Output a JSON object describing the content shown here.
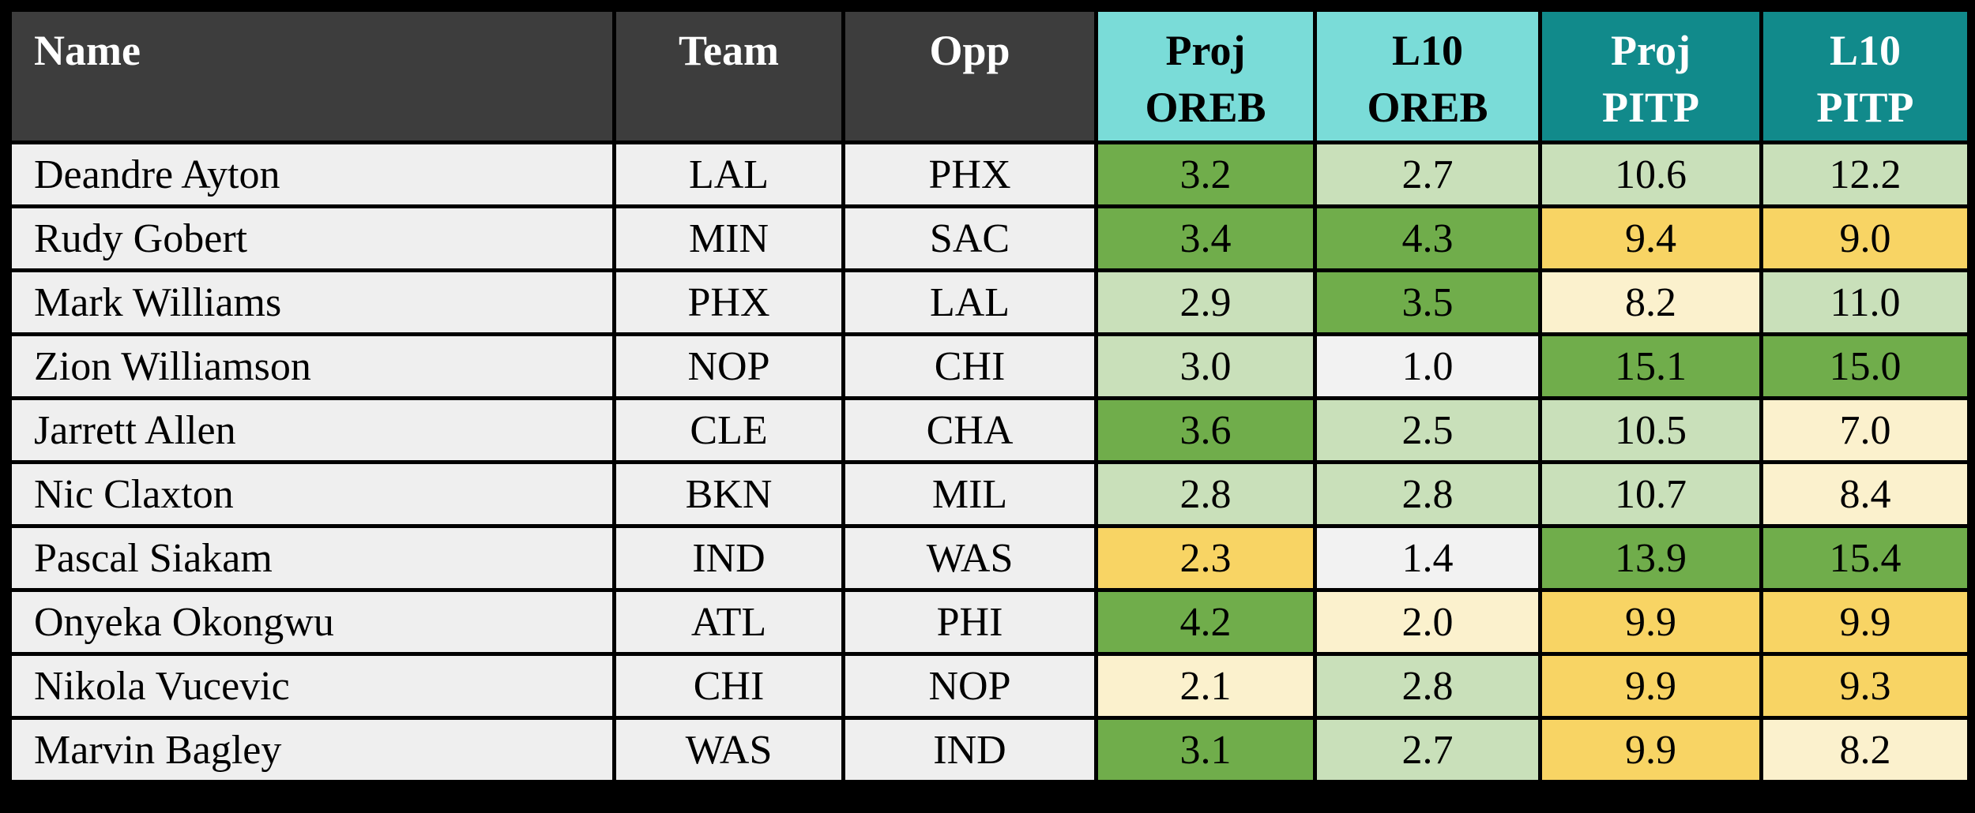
{
  "colors": {
    "page_bg": "#000000",
    "grid": "#000000",
    "header_dark": "#3d3d3d",
    "header_cyan": "#7adcd8",
    "header_teal": "#118a8b",
    "row_bg": "#efefef",
    "tiers": {
      "green": "#70ad4b",
      "light_green": "#c9e0ba",
      "cream": "#fbf1cd",
      "yellow": "#f8d464",
      "white": "#f2f2f2"
    }
  },
  "table": {
    "columns": [
      {
        "label": "Name",
        "label2": "",
        "header_bg": "#3d3d3d",
        "header_text": "#ffffff"
      },
      {
        "label": "Team",
        "label2": "",
        "header_bg": "#3d3d3d",
        "header_text": "#ffffff"
      },
      {
        "label": "Opp",
        "label2": "",
        "header_bg": "#3d3d3d",
        "header_text": "#ffffff"
      },
      {
        "label": "Proj",
        "label2": "OREB",
        "header_bg": "#7adcd8",
        "header_text": "#000000"
      },
      {
        "label": "L10",
        "label2": "OREB",
        "header_bg": "#7adcd8",
        "header_text": "#000000"
      },
      {
        "label": "Proj",
        "label2": "PITP",
        "header_bg": "#118a8b",
        "header_text": "#ffffff"
      },
      {
        "label": "L10",
        "label2": "PITP",
        "header_bg": "#118a8b",
        "header_text": "#ffffff"
      }
    ],
    "rows": [
      {
        "name": "Deandre Ayton",
        "team": "LAL",
        "opp": "PHX",
        "stats": [
          {
            "value": "3.2",
            "tier": "green"
          },
          {
            "value": "2.7",
            "tier": "light_green"
          },
          {
            "value": "10.6",
            "tier": "light_green"
          },
          {
            "value": "12.2",
            "tier": "light_green"
          }
        ]
      },
      {
        "name": "Rudy Gobert",
        "team": "MIN",
        "opp": "SAC",
        "stats": [
          {
            "value": "3.4",
            "tier": "green"
          },
          {
            "value": "4.3",
            "tier": "green"
          },
          {
            "value": "9.4",
            "tier": "yellow"
          },
          {
            "value": "9.0",
            "tier": "yellow"
          }
        ]
      },
      {
        "name": "Mark Williams",
        "team": "PHX",
        "opp": "LAL",
        "stats": [
          {
            "value": "2.9",
            "tier": "light_green"
          },
          {
            "value": "3.5",
            "tier": "green"
          },
          {
            "value": "8.2",
            "tier": "cream"
          },
          {
            "value": "11.0",
            "tier": "light_green"
          }
        ]
      },
      {
        "name": "Zion Williamson",
        "team": "NOP",
        "opp": "CHI",
        "stats": [
          {
            "value": "3.0",
            "tier": "light_green"
          },
          {
            "value": "1.0",
            "tier": "white"
          },
          {
            "value": "15.1",
            "tier": "green"
          },
          {
            "value": "15.0",
            "tier": "green"
          }
        ]
      },
      {
        "name": "Jarrett Allen",
        "team": "CLE",
        "opp": "CHA",
        "stats": [
          {
            "value": "3.6",
            "tier": "green"
          },
          {
            "value": "2.5",
            "tier": "light_green"
          },
          {
            "value": "10.5",
            "tier": "light_green"
          },
          {
            "value": "7.0",
            "tier": "cream"
          }
        ]
      },
      {
        "name": "Nic Claxton",
        "team": "BKN",
        "opp": "MIL",
        "stats": [
          {
            "value": "2.8",
            "tier": "light_green"
          },
          {
            "value": "2.8",
            "tier": "light_green"
          },
          {
            "value": "10.7",
            "tier": "light_green"
          },
          {
            "value": "8.4",
            "tier": "cream"
          }
        ]
      },
      {
        "name": "Pascal Siakam",
        "team": "IND",
        "opp": "WAS",
        "stats": [
          {
            "value": "2.3",
            "tier": "yellow"
          },
          {
            "value": "1.4",
            "tier": "white"
          },
          {
            "value": "13.9",
            "tier": "green"
          },
          {
            "value": "15.4",
            "tier": "green"
          }
        ]
      },
      {
        "name": "Onyeka Okongwu",
        "team": "ATL",
        "opp": "PHI",
        "stats": [
          {
            "value": "4.2",
            "tier": "green"
          },
          {
            "value": "2.0",
            "tier": "cream"
          },
          {
            "value": "9.9",
            "tier": "yellow"
          },
          {
            "value": "9.9",
            "tier": "yellow"
          }
        ]
      },
      {
        "name": "Nikola Vucevic",
        "team": "CHI",
        "opp": "NOP",
        "stats": [
          {
            "value": "2.1",
            "tier": "cream"
          },
          {
            "value": "2.8",
            "tier": "light_green"
          },
          {
            "value": "9.9",
            "tier": "yellow"
          },
          {
            "value": "9.3",
            "tier": "yellow"
          }
        ]
      },
      {
        "name": "Marvin Bagley",
        "team": "WAS",
        "opp": "IND",
        "stats": [
          {
            "value": "3.1",
            "tier": "green"
          },
          {
            "value": "2.7",
            "tier": "light_green"
          },
          {
            "value": "9.9",
            "tier": "yellow"
          },
          {
            "value": "8.2",
            "tier": "cream"
          }
        ]
      }
    ]
  },
  "chart_data": {
    "type": "table",
    "title": "",
    "columns": [
      "Name",
      "Team",
      "Opp",
      "Proj OREB",
      "L10 OREB",
      "Proj PITP",
      "L10 PITP"
    ],
    "rows": [
      [
        "Deandre Ayton",
        "LAL",
        "PHX",
        3.2,
        2.7,
        10.6,
        12.2
      ],
      [
        "Rudy Gobert",
        "MIN",
        "SAC",
        3.4,
        4.3,
        9.4,
        9.0
      ],
      [
        "Mark Williams",
        "PHX",
        "LAL",
        2.9,
        3.5,
        8.2,
        11.0
      ],
      [
        "Zion Williamson",
        "NOP",
        "CHI",
        3.0,
        1.0,
        15.1,
        15.0
      ],
      [
        "Jarrett Allen",
        "CLE",
        "CHA",
        3.6,
        2.5,
        10.5,
        7.0
      ],
      [
        "Nic Claxton",
        "BKN",
        "MIL",
        2.8,
        2.8,
        10.7,
        8.4
      ],
      [
        "Pascal Siakam",
        "IND",
        "WAS",
        2.3,
        1.4,
        13.9,
        15.4
      ],
      [
        "Onyeka Okongwu",
        "ATL",
        "PHI",
        4.2,
        2.0,
        9.9,
        9.9
      ],
      [
        "Nikola Vucevic",
        "CHI",
        "NOP",
        2.1,
        2.8,
        9.9,
        9.3
      ],
      [
        "Marvin Bagley",
        "WAS",
        "IND",
        3.1,
        2.7,
        9.9,
        8.2
      ]
    ],
    "layout_hints": {
      "heatmap_cells": true,
      "cell_color_legend": {
        "#70ad4b": "dark green tier",
        "#c9e0ba": "light green tier",
        "#fbf1cd": "cream tier",
        "#f8d464": "yellow tier",
        "#f2f2f2": "near-white tier"
      }
    }
  }
}
